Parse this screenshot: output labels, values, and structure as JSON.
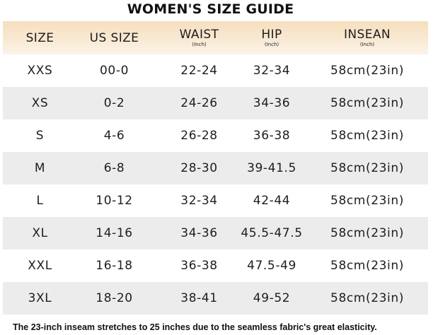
{
  "title": "WOMEN'S SIZE GUIDE",
  "header": {
    "size": "SIZE",
    "us_size": "US SIZE",
    "waist": "WAIST",
    "waist_unit": "(Inch)",
    "hip": "HIP",
    "hip_unit": "(Inch)",
    "insean": "INSEAN",
    "insean_unit": "(Inch)"
  },
  "rows": [
    {
      "size": "XXS",
      "us": "00-0",
      "waist": "22-24",
      "hip": "32-34",
      "inseam": "58cm(23in)",
      "shaded": false
    },
    {
      "size": "XS",
      "us": "0-2",
      "waist": "24-26",
      "hip": "34-36",
      "inseam": "58cm(23in)",
      "shaded": true
    },
    {
      "size": "S",
      "us": "4-6",
      "waist": "26-28",
      "hip": "36-38",
      "inseam": "58cm(23in)",
      "shaded": false
    },
    {
      "size": "M",
      "us": "6-8",
      "waist": "28-30",
      "hip": "39-41.5",
      "inseam": "58cm(23in)",
      "shaded": true
    },
    {
      "size": "L",
      "us": "10-12",
      "waist": "32-34",
      "hip": "42-44",
      "inseam": "58cm(23in)",
      "shaded": false
    },
    {
      "size": "XL",
      "us": "14-16",
      "waist": "34-36",
      "hip": "45.5-47.5",
      "inseam": "58cm(23in)",
      "shaded": true
    },
    {
      "size": "XXL",
      "us": "16-18",
      "waist": "36-38",
      "hip": "47.5-49",
      "inseam": "58cm(23in)",
      "shaded": false
    },
    {
      "size": "3XL",
      "us": "18-20",
      "waist": "38-41",
      "hip": "49-52",
      "inseam": "58cm(23in)",
      "shaded": true
    }
  ],
  "footnote": "The 23-inch inseam stretches to 25 inches due to the seamless fabric's great elasticity.",
  "colors": {
    "header_band": "#f6dfbe",
    "shaded_row": "#ececec"
  }
}
